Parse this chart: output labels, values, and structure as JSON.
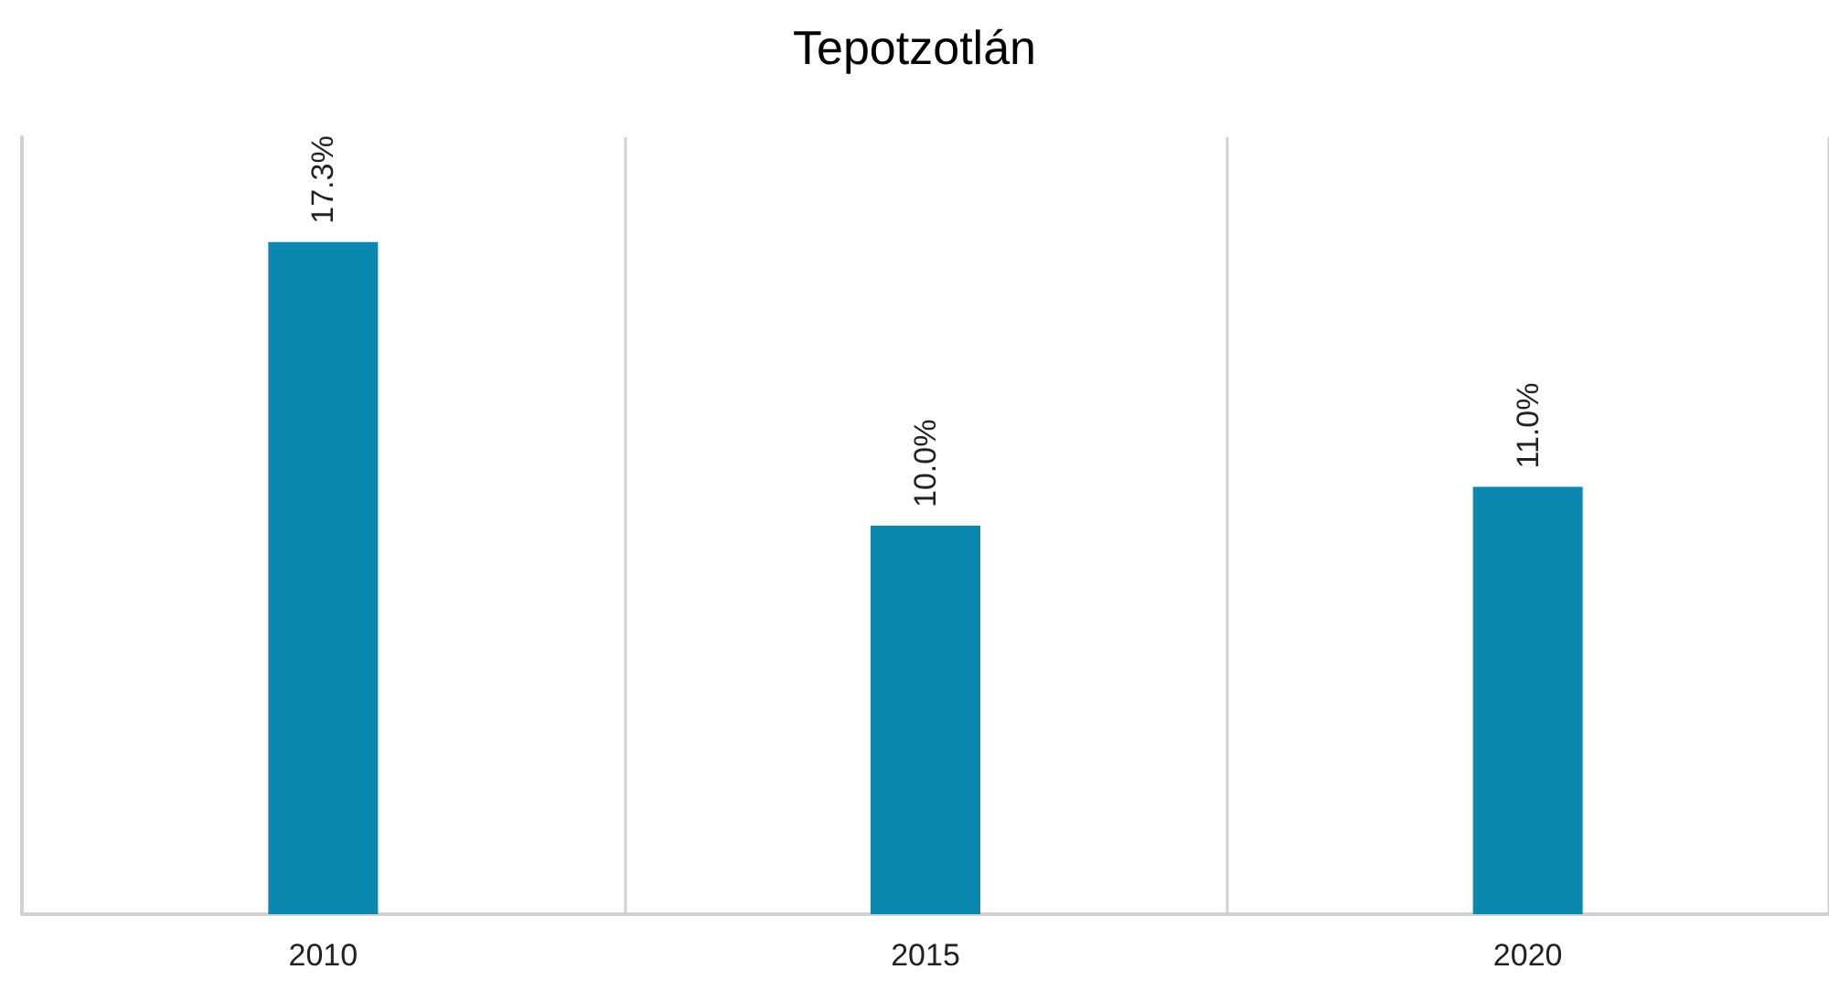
{
  "chart_data": {
    "type": "bar",
    "title": "Tepotzotlán",
    "categories": [
      "2010",
      "2015",
      "2020"
    ],
    "values": [
      17.3,
      10.0,
      11.0
    ],
    "color": "#0b88b0",
    "value_labels": [
      "17.3%",
      "10.0%",
      "11.0%"
    ],
    "ylim": [
      0,
      20
    ],
    "grid": "x",
    "tick_labels": "x"
  }
}
